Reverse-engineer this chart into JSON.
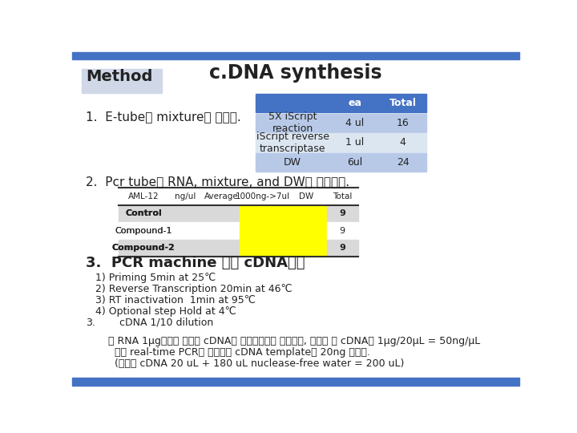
{
  "title": "c.DNA synthesis",
  "method_label": "Method",
  "slide_bg": "#ffffff",
  "top_bar_color": "#4472C4",
  "bottom_bar_color": "#4472C4",
  "method_box_color": "#d0d8e8",
  "table1_header": [
    "",
    "ea",
    "Total"
  ],
  "table1_rows": [
    [
      "5X iScript\nreaction",
      "4 ul",
      "16"
    ],
    [
      "iScript reverse\ntranscriptase",
      "1 ul",
      "4"
    ],
    [
      "DW",
      "6ul",
      "24"
    ]
  ],
  "table1_header_bg": "#4472C4",
  "table1_header_fg": "#ffffff",
  "table1_row_bg1": "#b8c9e8",
  "table1_row_bg2": "#dce6f1",
  "step1_text": "1.  E-tube에 mixture를 만든다.",
  "step2_text": "2.  Pcr tube에 RNA, mixture, and DW를 넣어준다.",
  "step3_text": "3.  PCR machine 으로 cDNA합성",
  "table2_headers": [
    "AML-12",
    "ng/ul",
    "Average",
    "1000ng->7ul",
    "DW",
    "Total"
  ],
  "table2_rows": [
    [
      "Control",
      "",
      "",
      "yellow",
      "yellow",
      "9"
    ],
    [
      "Compound-1",
      "",
      "",
      "yellow",
      "yellow",
      "9"
    ],
    [
      "Compound-2",
      "",
      "",
      "yellow",
      "yellow",
      "9"
    ]
  ],
  "table2_row_bg_odd": "#d9d9d9",
  "table2_row_bg_even": "#ffffff",
  "table2_yellow": "#ffff00",
  "pcr_steps": [
    "1) Priming 5min at 25℃",
    "2) Reverse Transcription 20min at 46℃",
    "3) RT inactivation  1min at 95℃",
    "4) Optional step Hold at 4℃"
  ],
  "step3b_label": "3.",
  "step3b_text": "    cDNA 1/10 dilution",
  "note1": "    ： RNA 1μg로부터 동량의 cDNA가 합성되었다고 가정하면, 합성된 숀 cDNA는 1μg/20μL = 50ng/μL",
  "note2": "      이후 real-time PCR에 사용되는 cDNA template는 20ng 사용함.",
  "note3": "      (합성된 cDNA 20 uL + 180 uL nuclease-free water = 200 uL)"
}
